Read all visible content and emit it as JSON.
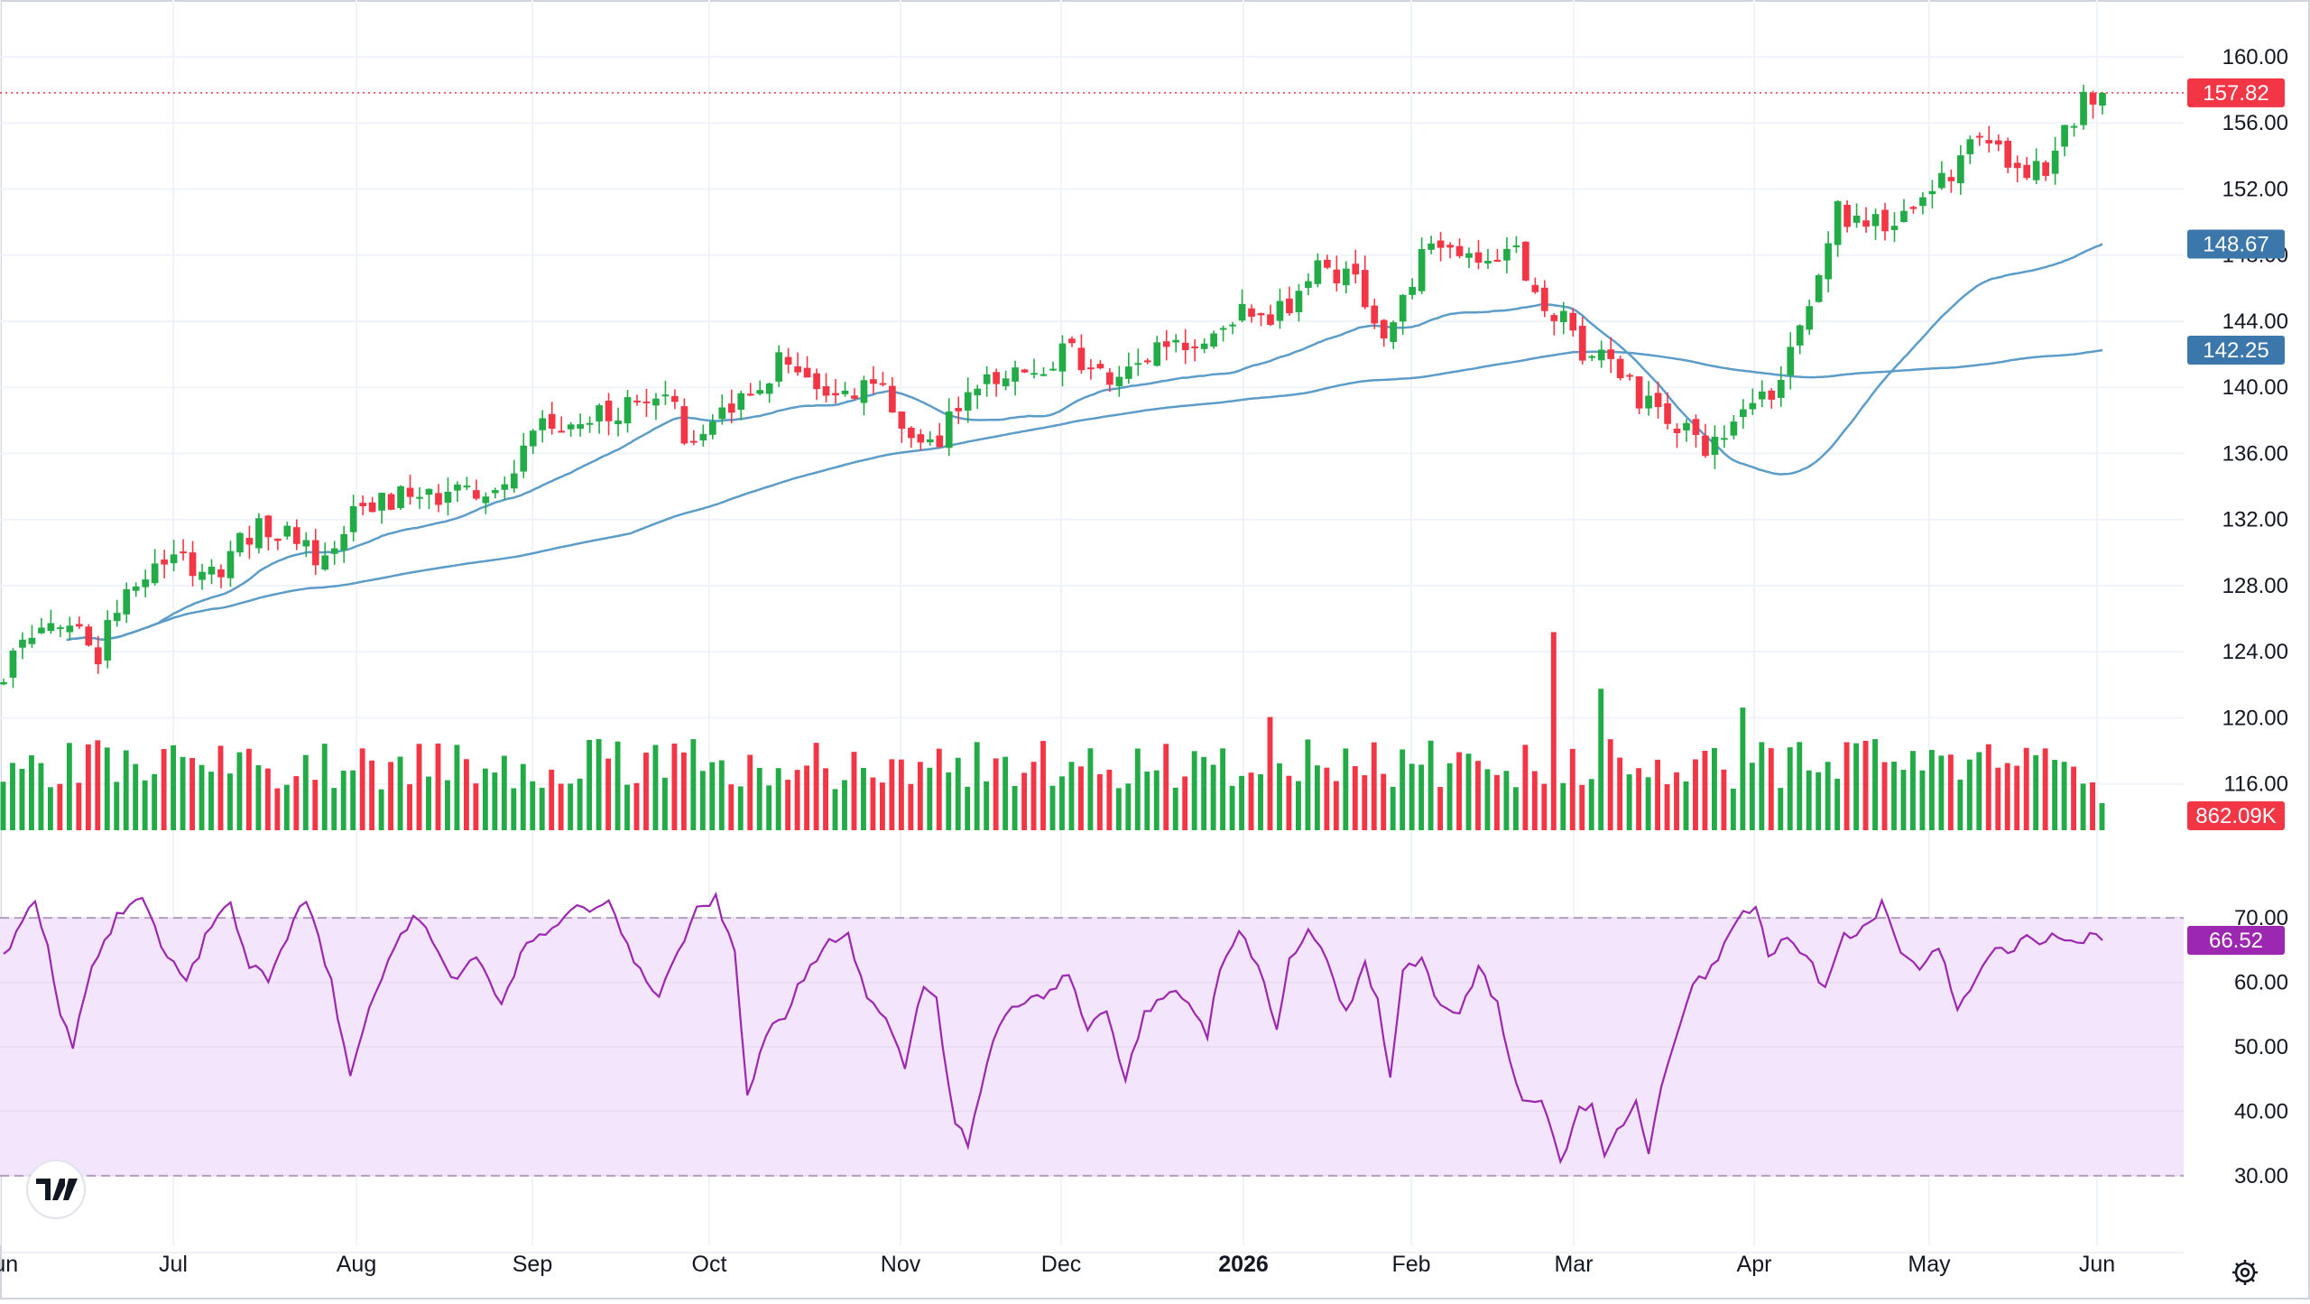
{
  "chart_data": [
    {
      "type": "candlestick",
      "panel": "price",
      "x_axis": {
        "labels": [
          "Jun",
          "Jul",
          "Aug",
          "Sep",
          "Oct",
          "Nov",
          "Dec",
          "2026",
          "Feb",
          "Mar",
          "Apr",
          "May",
          "Jun"
        ],
        "bold_label": "2026"
      },
      "y_axis": {
        "ticks": [
          "160.00",
          "156.00",
          "152.00",
          "148.00",
          "144.00",
          "140.00",
          "136.00",
          "132.00",
          "128.00",
          "124.00",
          "120.00",
          "116.00"
        ],
        "range": [
          113.2,
          161.8
        ]
      },
      "last_price": {
        "label": "157.82",
        "value": 157.82,
        "color": "#f23645"
      },
      "ma_labels": [
        {
          "label": "148.67",
          "value": 148.67,
          "color": "#3b77ab"
        },
        {
          "label": "142.25",
          "value": 142.25,
          "color": "#3b77ab"
        }
      ],
      "up_color": "#089981",
      "down_color": "#f23645",
      "candle_up_color": "#22ab47",
      "candle_down_color": "#f23645",
      "ma_color": "#5b9cc9",
      "anchors": [
        [
          0,
          122.9
        ],
        [
          12,
          125.5
        ],
        [
          20,
          126.0
        ],
        [
          30,
          123.8
        ],
        [
          38,
          127.5
        ],
        [
          52,
          129.6
        ],
        [
          68,
          128.6
        ],
        [
          80,
          131.8
        ],
        [
          94,
          130.6
        ],
        [
          100,
          128.7
        ],
        [
          112,
          132.4
        ],
        [
          124,
          133.3
        ],
        [
          134,
          133.2
        ],
        [
          148,
          134.0
        ],
        [
          158,
          133.6
        ],
        [
          170,
          137.4
        ],
        [
          190,
          138.2
        ],
        [
          205,
          139.5
        ],
        [
          213,
          139.3
        ],
        [
          218,
          135.8
        ],
        [
          232,
          138.9
        ],
        [
          248,
          141.9
        ],
        [
          256,
          140.4
        ],
        [
          270,
          138.9
        ],
        [
          278,
          141.5
        ],
        [
          284,
          137.8
        ],
        [
          292,
          135.7
        ],
        [
          306,
          139.4
        ],
        [
          324,
          141.2
        ],
        [
          338,
          142.1
        ],
        [
          352,
          140.0
        ],
        [
          368,
          142.8
        ],
        [
          380,
          142.5
        ],
        [
          392,
          144.6
        ],
        [
          402,
          143.7
        ],
        [
          416,
          147.2
        ],
        [
          428,
          146.9
        ],
        [
          438,
          143.2
        ],
        [
          452,
          148.4
        ],
        [
          466,
          147.8
        ],
        [
          480,
          148.4
        ],
        [
          490,
          144.4
        ],
        [
          496,
          145.2
        ],
        [
          502,
          141.0
        ],
        [
          510,
          142.0
        ],
        [
          520,
          139.0
        ],
        [
          534,
          137.3
        ],
        [
          544,
          136.1
        ],
        [
          554,
          139.3
        ],
        [
          562,
          139.7
        ],
        [
          570,
          143.7
        ],
        [
          582,
          150.6
        ],
        [
          594,
          150.0
        ],
        [
          602,
          149.7
        ],
        [
          614,
          152.0
        ],
        [
          626,
          155.0
        ],
        [
          640,
          153.5
        ],
        [
          648,
          152.8
        ],
        [
          660,
          157.4
        ],
        [
          666,
          157.82
        ]
      ],
      "volume": {
        "last_label": "862.09K",
        "last_value": 0.86,
        "unit": "M",
        "max": 6.6,
        "spikes": [
          [
            104,
            3.6
          ],
          [
            161,
            4.2
          ],
          [
            227,
            3.7
          ],
          [
            263,
            2.8
          ],
          [
            292,
            3.8
          ],
          [
            402,
            3.6
          ],
          [
            416,
            3.3
          ],
          [
            436,
            6.0
          ],
          [
            440,
            4.1
          ],
          [
            446,
            3.3
          ],
          [
            492,
            6.3
          ],
          [
            496,
            4.8
          ],
          [
            507,
            4.5
          ],
          [
            520,
            3.3
          ],
          [
            552,
            3.9
          ],
          [
            578,
            2.6
          ],
          [
            585,
            2.8
          ]
        ]
      }
    },
    {
      "type": "line",
      "panel": "rsi",
      "y_axis": {
        "ticks": [
          "70.00",
          "60.00",
          "50.00",
          "40.00",
          "30.00"
        ],
        "range": [
          22,
          78
        ]
      },
      "upper_band": 70,
      "lower_band": 30,
      "band_fill": "#f3e6fc",
      "line_color": "#9c27b0",
      "last_value": {
        "label": "66.52",
        "value": 66.52,
        "color": "#9c27b0"
      },
      "anchors": [
        [
          0,
          64
        ],
        [
          5,
          69
        ],
        [
          10,
          72
        ],
        [
          14,
          65
        ],
        [
          18,
          55
        ],
        [
          22,
          50
        ],
        [
          28,
          63
        ],
        [
          36,
          70
        ],
        [
          44,
          73
        ],
        [
          52,
          64
        ],
        [
          58,
          60
        ],
        [
          65,
          68
        ],
        [
          72,
          72
        ],
        [
          78,
          63
        ],
        [
          84,
          60
        ],
        [
          90,
          67
        ],
        [
          96,
          73
        ],
        [
          104,
          60
        ],
        [
          110,
          45
        ],
        [
          116,
          56
        ],
        [
          124,
          66
        ],
        [
          130,
          70
        ],
        [
          136,
          67
        ],
        [
          143,
          60
        ],
        [
          150,
          64
        ],
        [
          158,
          57
        ],
        [
          166,
          66
        ],
        [
          174,
          68
        ],
        [
          180,
          72
        ],
        [
          186,
          71
        ],
        [
          192,
          72
        ],
        [
          200,
          63
        ],
        [
          208,
          58
        ],
        [
          220,
          71
        ],
        [
          226,
          73
        ],
        [
          232,
          65
        ],
        [
          236,
          42
        ],
        [
          242,
          52
        ],
        [
          248,
          55
        ],
        [
          254,
          61
        ],
        [
          262,
          66
        ],
        [
          268,
          67
        ],
        [
          274,
          58
        ],
        [
          280,
          55
        ],
        [
          286,
          47
        ],
        [
          292,
          60
        ],
        [
          296,
          57
        ],
        [
          302,
          38
        ],
        [
          306,
          35
        ],
        [
          312,
          48
        ],
        [
          318,
          55
        ],
        [
          324,
          57
        ],
        [
          330,
          58
        ],
        [
          338,
          61
        ],
        [
          344,
          53
        ],
        [
          350,
          55
        ],
        [
          356,
          45
        ],
        [
          362,
          55
        ],
        [
          370,
          59
        ],
        [
          376,
          56
        ],
        [
          382,
          52
        ],
        [
          386,
          62
        ],
        [
          392,
          68
        ],
        [
          398,
          63
        ],
        [
          404,
          52
        ],
        [
          408,
          64
        ],
        [
          414,
          68
        ],
        [
          420,
          64
        ],
        [
          426,
          55
        ],
        [
          432,
          63
        ],
        [
          436,
          57
        ],
        [
          440,
          45
        ],
        [
          444,
          62
        ],
        [
          450,
          64
        ],
        [
          456,
          56
        ],
        [
          462,
          55
        ],
        [
          468,
          62
        ],
        [
          474,
          57
        ],
        [
          478,
          48
        ],
        [
          482,
          41
        ],
        [
          488,
          42
        ],
        [
          494,
          32
        ],
        [
          500,
          40
        ],
        [
          504,
          41
        ],
        [
          508,
          33
        ],
        [
          512,
          37
        ],
        [
          518,
          41
        ],
        [
          522,
          34
        ],
        [
          526,
          44
        ],
        [
          530,
          51
        ],
        [
          536,
          60
        ],
        [
          542,
          62
        ],
        [
          548,
          68
        ],
        [
          552,
          71
        ],
        [
          556,
          72
        ],
        [
          560,
          64
        ],
        [
          566,
          67
        ],
        [
          572,
          64
        ],
        [
          578,
          59
        ],
        [
          584,
          67
        ],
        [
          590,
          68
        ],
        [
          596,
          72
        ],
        [
          602,
          65
        ],
        [
          608,
          62
        ],
        [
          614,
          66
        ],
        [
          620,
          56
        ],
        [
          626,
          60
        ],
        [
          632,
          66
        ],
        [
          636,
          64
        ],
        [
          640,
          67
        ],
        [
          646,
          66
        ],
        [
          650,
          68
        ],
        [
          656,
          66
        ],
        [
          662,
          67
        ],
        [
          666,
          66.52
        ]
      ]
    }
  ]
}
